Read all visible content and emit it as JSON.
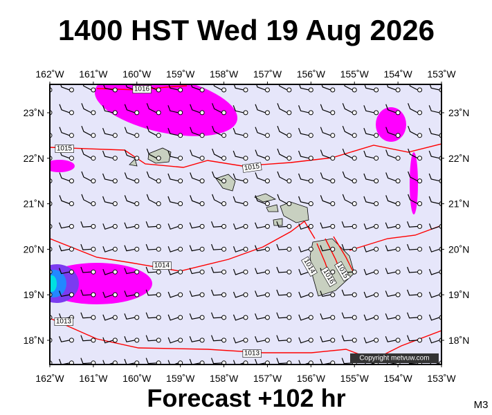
{
  "header": {
    "title": "1400 HST Wed 19 Aug 2026"
  },
  "map": {
    "lon_labels": [
      "162˚W",
      "161˚W",
      "160˚W",
      "159˚W",
      "158˚W",
      "157˚W",
      "156˚W",
      "155˚W",
      "154˚W",
      "153˚W"
    ],
    "lat_labels": [
      "23˚N",
      "22˚N",
      "21˚N",
      "20˚N",
      "19˚N",
      "18˚N"
    ],
    "isobar_labels": [
      "1016",
      "1015",
      "1015",
      "1014",
      "1013",
      "1013",
      "1014",
      "1016",
      "1015"
    ],
    "copyright": "Copyright metvuw.com"
  },
  "footer": {
    "forecast": "Forecast +102 hr",
    "model": "M3"
  }
}
